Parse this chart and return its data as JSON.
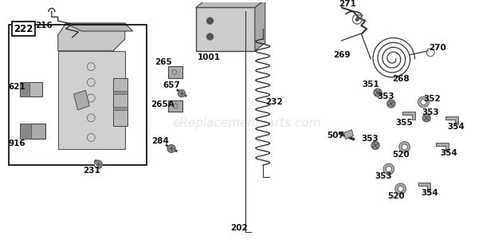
{
  "bg_color": "#ffffff",
  "watermark": "eReplacementParts.com",
  "watermark_color": "#c8c8c8",
  "watermark_alpha": 0.45,
  "watermark_fs": 11,
  "label_fontsize": 7.5,
  "label_color": "#111111",
  "label_bold": true,
  "line_color": "#333333",
  "part_gray": "#888888",
  "part_light": "#bbbbbb"
}
